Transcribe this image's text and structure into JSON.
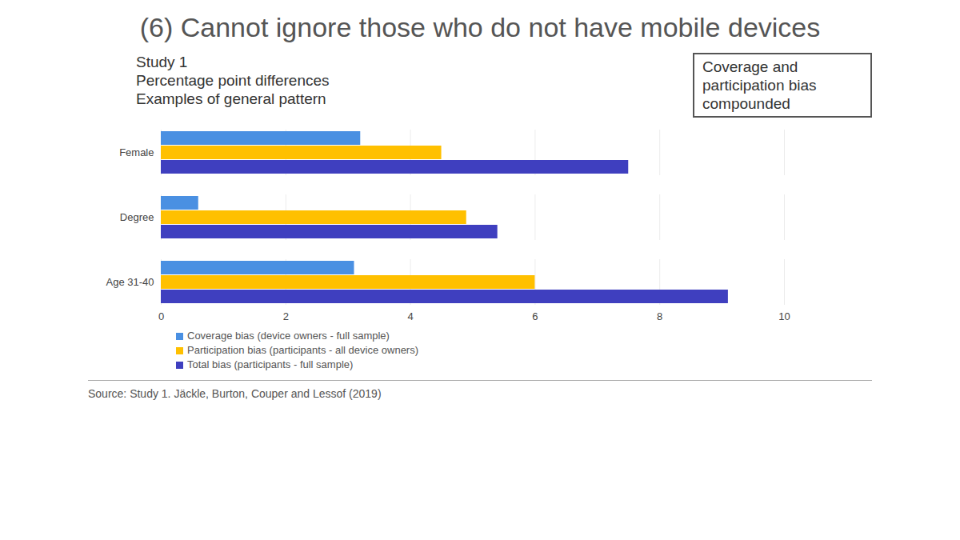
{
  "chart_data": {
    "type": "bar",
    "orientation": "horizontal",
    "title": "(6) Cannot ignore those who do not have mobile devices",
    "subtitle": [
      "Study 1",
      "Percentage point differences",
      "Examples of general pattern"
    ],
    "annotations": [
      "Coverage and participation bias compounded"
    ],
    "caption": "Source: Study 1. Jäckle, Burton, Couper and Lessof (2019)",
    "categories": [
      "Female",
      "Degree",
      "Age 31-40"
    ],
    "series": [
      {
        "name": "Coverage bias (device owners - full sample)",
        "color": "#4a90e2",
        "values": [
          3.2,
          0.6,
          3.1
        ]
      },
      {
        "name": "Participation bias (participants - all device owners)",
        "color": "#ffc000",
        "values": [
          4.5,
          4.9,
          6.0
        ]
      },
      {
        "name": "Total bias (participants - full sample)",
        "color": "#3f3fbf",
        "values": [
          7.5,
          5.4,
          9.1
        ]
      }
    ],
    "xlim": [
      0,
      10
    ],
    "xticks": [
      0,
      2,
      4,
      6,
      8,
      10
    ],
    "grid": true,
    "legend": "bottom"
  }
}
